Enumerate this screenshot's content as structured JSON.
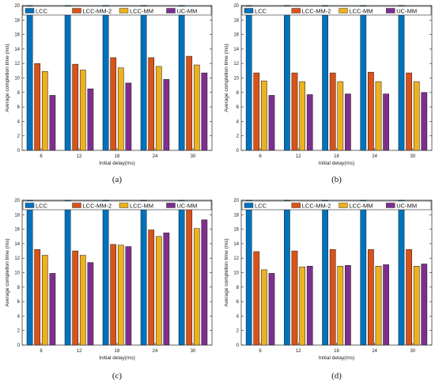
{
  "series_colors": {
    "LCC": "#0072BD",
    "LCC-MM-2": "#D95319",
    "LCC-MM": "#EDB120",
    "UC-MM": "#7E2F8E"
  },
  "chart_data": [
    {
      "type": "bar",
      "panel_label": "(a)",
      "categories": [
        "6",
        "12",
        "18",
        "24",
        "30"
      ],
      "xlabel": "Initial delay(ms)",
      "ylabel": "Average completion time (ms)",
      "ylim": [
        0,
        20
      ],
      "yticks": [
        "0",
        "2",
        "4",
        "6",
        "8",
        "10",
        "12",
        "14",
        "16",
        "18",
        "20"
      ],
      "grid": false,
      "legend": "top, horizontal",
      "series": [
        {
          "name": "LCC",
          "values": [
            20,
            20,
            20,
            20,
            20
          ]
        },
        {
          "name": "LCC-MM-2",
          "values": [
            12.0,
            11.9,
            12.8,
            12.8,
            13.0
          ]
        },
        {
          "name": "LCC-MM",
          "values": [
            10.9,
            11.1,
            11.4,
            11.6,
            11.8
          ]
        },
        {
          "name": "UC-MM",
          "values": [
            7.6,
            8.5,
            9.3,
            9.8,
            10.7
          ]
        }
      ]
    },
    {
      "type": "bar",
      "panel_label": "(b)",
      "categories": [
        "6",
        "12",
        "18",
        "24",
        "30"
      ],
      "xlabel": "Initial delay(ms)",
      "ylabel": "Average completion time (ms)",
      "ylim": [
        0,
        20
      ],
      "yticks": [
        "0",
        "2",
        "4",
        "6",
        "8",
        "10",
        "12",
        "14",
        "16",
        "18",
        "20"
      ],
      "grid": false,
      "legend": "top, horizontal",
      "series": [
        {
          "name": "LCC",
          "values": [
            20,
            20,
            20,
            20,
            20
          ]
        },
        {
          "name": "LCC-MM-2",
          "values": [
            10.7,
            10.7,
            10.7,
            10.8,
            10.7
          ]
        },
        {
          "name": "LCC-MM",
          "values": [
            9.6,
            9.5,
            9.5,
            9.5,
            9.5
          ]
        },
        {
          "name": "UC-MM",
          "values": [
            7.6,
            7.7,
            7.8,
            7.8,
            8.0
          ]
        }
      ]
    },
    {
      "type": "bar",
      "panel_label": "(c)",
      "categories": [
        "6",
        "12",
        "18",
        "24",
        "30"
      ],
      "xlabel": "Initial delay(ms)",
      "ylabel": "Average completion time (ms)",
      "ylim": [
        0,
        20
      ],
      "yticks": [
        "0",
        "2",
        "4",
        "6",
        "8",
        "10",
        "12",
        "14",
        "16",
        "18",
        "20"
      ],
      "grid": false,
      "legend": "top, horizontal",
      "series": [
        {
          "name": "LCC",
          "values": [
            20,
            20,
            20,
            20,
            20
          ]
        },
        {
          "name": "LCC-MM-2",
          "values": [
            13.2,
            13.0,
            13.9,
            15.9,
            19.0
          ]
        },
        {
          "name": "LCC-MM",
          "values": [
            12.4,
            12.4,
            13.8,
            15.0,
            16.1
          ]
        },
        {
          "name": "UC-MM",
          "values": [
            9.9,
            11.4,
            13.6,
            15.5,
            17.3
          ]
        }
      ]
    },
    {
      "type": "bar",
      "panel_label": "(d)",
      "categories": [
        "6",
        "12",
        "18",
        "24",
        "30"
      ],
      "xlabel": "Initial delay(ms)",
      "ylabel": "Average completion time (ms)",
      "ylim": [
        0,
        20
      ],
      "yticks": [
        "0",
        "2",
        "4",
        "6",
        "8",
        "10",
        "12",
        "14",
        "16",
        "18",
        "20"
      ],
      "grid": false,
      "legend": "top, horizontal",
      "series": [
        {
          "name": "LCC",
          "values": [
            20,
            20,
            20,
            20,
            20
          ]
        },
        {
          "name": "LCC-MM-2",
          "values": [
            12.9,
            13.0,
            13.2,
            13.2,
            13.2
          ]
        },
        {
          "name": "LCC-MM",
          "values": [
            10.4,
            10.8,
            10.9,
            10.9,
            10.9
          ]
        },
        {
          "name": "UC-MM",
          "values": [
            9.9,
            10.9,
            11.0,
            11.1,
            11.2
          ]
        }
      ]
    }
  ]
}
